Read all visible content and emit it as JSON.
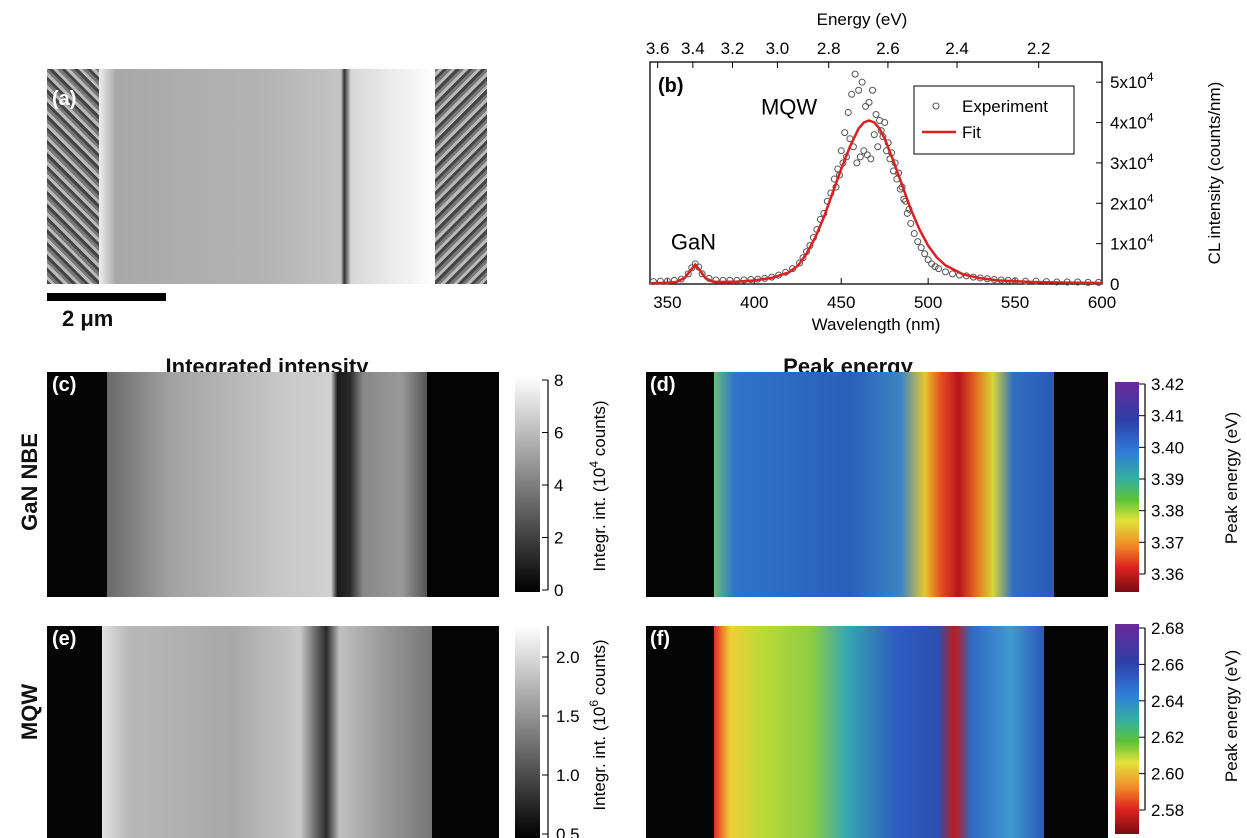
{
  "panels": {
    "a": "(a)",
    "b": "(b)",
    "c": "(c)",
    "d": "(d)",
    "e": "(e)",
    "f": "(f)"
  },
  "scale_bar": "2 μm",
  "headers": {
    "left": "Integrated intensity",
    "right": "Peak energy"
  },
  "row_labels": {
    "top": "GaN NBE",
    "bottom": "MQW"
  },
  "colorbars": {
    "c": {
      "ticks": [
        "8",
        "6",
        "4",
        "2",
        "0"
      ],
      "label_main": "Integr. int. (10",
      "label_sup": "4",
      "label_end": " counts)"
    },
    "d": {
      "ticks": [
        "3.42",
        "3.41",
        "3.40",
        "3.39",
        "3.38",
        "3.37",
        "3.36"
      ],
      "label": "Peak energy (eV)"
    },
    "e": {
      "ticks": [
        "2.0",
        "1.5",
        "1.0",
        "0.5"
      ],
      "label_main": "Integr. int. (10",
      "label_sup": "6",
      "label_end": " counts)"
    },
    "f": {
      "ticks": [
        "2.68",
        "2.66",
        "2.64",
        "2.62",
        "2.60",
        "2.58"
      ],
      "label": "Peak energy (eV)"
    }
  },
  "chart_data": {
    "type": "scatter",
    "xlabel": "Wavelength (nm)",
    "ylabel": "CL intensity (counts/nm)",
    "top_axis_label": "Energy (eV)",
    "xlim": [
      340,
      600
    ],
    "ylim": [
      0,
      55000
    ],
    "x_ticks": [
      "350",
      "400",
      "450",
      "500",
      "550",
      "600"
    ],
    "x_tick_values": [
      350,
      400,
      450,
      500,
      550,
      600
    ],
    "y_ticks": [
      "0",
      "1x10",
      "2x10",
      "3x10",
      "4x10",
      "5x10"
    ],
    "y_tick_sup": "4",
    "y_tick_values": [
      0,
      10000,
      20000,
      30000,
      40000,
      50000
    ],
    "top_ticks": [
      "3.6",
      "3.4",
      "3.2",
      "3.0",
      "2.8",
      "2.6",
      "2.4",
      "2.2"
    ],
    "top_tick_values": [
      3.6,
      3.4,
      3.2,
      3.0,
      2.8,
      2.6,
      2.4,
      2.2
    ],
    "annotations": {
      "gan": "GaN",
      "mqw": "MQW"
    },
    "series": [
      {
        "name": "Experiment",
        "color": "#555555",
        "x": [
          342,
          346,
          350,
          354,
          358,
          362,
          364,
          366,
          368,
          370,
          374,
          378,
          382,
          386,
          390,
          394,
          398,
          402,
          406,
          410,
          414,
          418,
          422,
          426,
          428,
          430,
          432,
          434,
          436,
          438,
          440,
          442,
          444,
          446,
          447,
          448,
          449,
          450,
          451,
          452,
          453,
          454,
          455,
          456,
          457,
          458,
          459,
          460,
          461,
          462,
          463,
          464,
          465,
          466,
          467,
          468,
          469,
          470,
          471,
          472,
          473,
          474,
          475,
          476,
          477,
          478,
          479,
          480,
          481,
          482,
          483,
          484,
          485,
          486,
          487,
          488,
          489,
          490,
          492,
          494,
          496,
          498,
          500,
          502,
          504,
          506,
          510,
          514,
          518,
          522,
          526,
          530,
          534,
          538,
          542,
          546,
          550,
          556,
          562,
          568,
          574,
          580,
          586,
          592,
          598
        ],
        "y": [
          600,
          700,
          700,
          900,
          1200,
          2500,
          4000,
          5000,
          4200,
          2500,
          1400,
          1000,
          900,
          900,
          900,
          1000,
          1100,
          1200,
          1400,
          1700,
          2200,
          2900,
          3800,
          5200,
          6500,
          8000,
          9500,
          11500,
          13500,
          16000,
          17500,
          20500,
          22500,
          26000,
          24000,
          28500,
          27000,
          33000,
          30000,
          37500,
          31500,
          42500,
          36000,
          47000,
          34000,
          52000,
          30000,
          48000,
          31500,
          50000,
          33000,
          44000,
          32000,
          45000,
          31000,
          48000,
          37000,
          42000,
          34000,
          40500,
          38000,
          36500,
          40000,
          33000,
          35000,
          31000,
          32500,
          28000,
          30000,
          26000,
          27500,
          23500,
          24000,
          21000,
          20500,
          17500,
          18500,
          15000,
          12500,
          10500,
          9000,
          7500,
          6000,
          5000,
          4300,
          3800,
          3000,
          2500,
          2200,
          2000,
          1700,
          1500,
          1300,
          1100,
          1000,
          900,
          800,
          700,
          700,
          600,
          500,
          500,
          500,
          400,
          400
        ]
      },
      {
        "name": "Fit",
        "color": "#dd1f1f",
        "x": [
          340,
          350,
          355,
          360,
          363,
          366,
          369,
          372,
          376,
          380,
          390,
          400,
          410,
          420,
          425,
          430,
          435,
          440,
          445,
          450,
          455,
          460,
          463,
          466,
          469,
          472,
          475,
          480,
          485,
          490,
          495,
          500,
          505,
          510,
          520,
          530,
          540,
          550,
          560,
          580,
          600
        ],
        "y": [
          200,
          300,
          500,
          1500,
          3200,
          4800,
          3200,
          1400,
          600,
          500,
          600,
          900,
          1500,
          2900,
          4500,
          7500,
          11500,
          16500,
          22500,
          28500,
          34000,
          38500,
          40000,
          40500,
          40000,
          38500,
          36000,
          30500,
          24500,
          18500,
          13500,
          9500,
          6600,
          4600,
          2400,
          1400,
          900,
          700,
          500,
          350,
          250
        ]
      }
    ],
    "legend_position": "top-right",
    "grid": false
  }
}
